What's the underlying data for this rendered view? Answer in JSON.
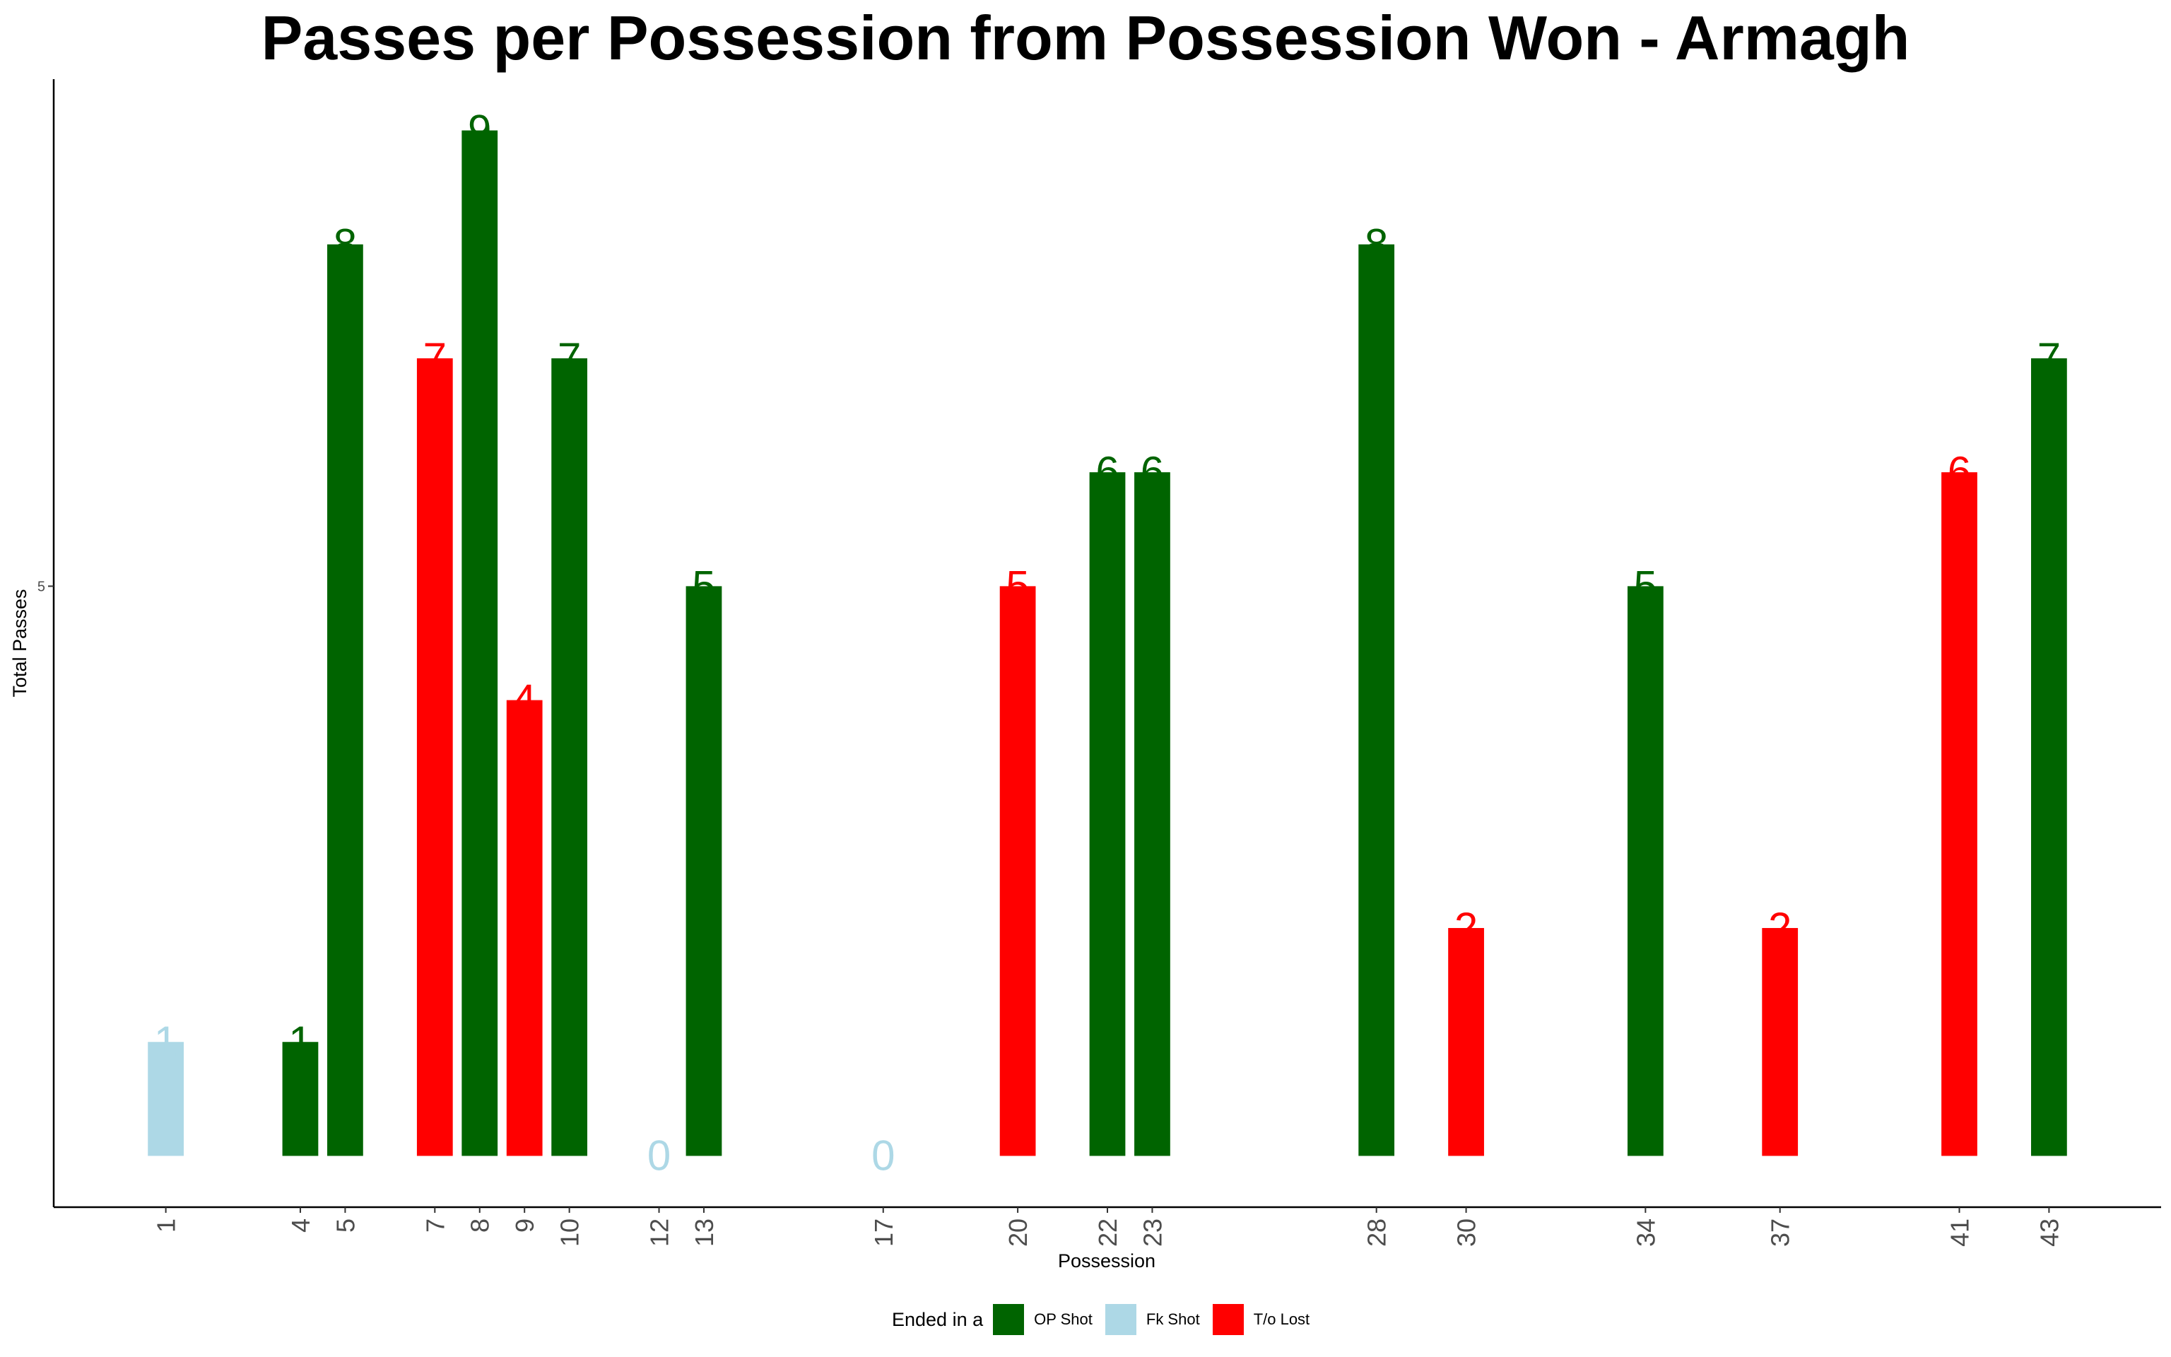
{
  "chart_data": {
    "type": "bar",
    "title": "Passes per Possession from Possession Won - Armagh",
    "xlabel": "Possession",
    "ylabel": "Total Passes",
    "x_range": [
      -1.5,
      45.5
    ],
    "y_range": [
      -0.45,
      9.45
    ],
    "y_ticks": [
      5
    ],
    "grid": false,
    "legend": {
      "title": "Ended in a",
      "position": "bottom",
      "items": [
        {
          "label": "OP Shot",
          "color": "#006400"
        },
        {
          "label": "Fk Shot",
          "color": "#ADD8E6"
        },
        {
          "label": "T/o Lost",
          "color": "#FF0000"
        }
      ]
    },
    "categories": [
      "1",
      "4",
      "5",
      "7",
      "8",
      "9",
      "10",
      "12",
      "13",
      "17",
      "20",
      "22",
      "23",
      "28",
      "30",
      "34",
      "37",
      "41",
      "43"
    ],
    "bars": [
      {
        "x": 1,
        "value": 1,
        "outcome": "Fk Shot"
      },
      {
        "x": 4,
        "value": 1,
        "outcome": "OP Shot"
      },
      {
        "x": 5,
        "value": 8,
        "outcome": "OP Shot"
      },
      {
        "x": 7,
        "value": 7,
        "outcome": "T/o Lost"
      },
      {
        "x": 8,
        "value": 9,
        "outcome": "OP Shot"
      },
      {
        "x": 9,
        "value": 4,
        "outcome": "T/o Lost"
      },
      {
        "x": 10,
        "value": 7,
        "outcome": "OP Shot"
      },
      {
        "x": 12,
        "value": 0,
        "outcome": "Fk Shot"
      },
      {
        "x": 13,
        "value": 5,
        "outcome": "OP Shot"
      },
      {
        "x": 17,
        "value": 0,
        "outcome": "Fk Shot"
      },
      {
        "x": 20,
        "value": 5,
        "outcome": "T/o Lost"
      },
      {
        "x": 22,
        "value": 6,
        "outcome": "OP Shot"
      },
      {
        "x": 23,
        "value": 6,
        "outcome": "OP Shot"
      },
      {
        "x": 28,
        "value": 8,
        "outcome": "OP Shot"
      },
      {
        "x": 30,
        "value": 2,
        "outcome": "T/o Lost"
      },
      {
        "x": 34,
        "value": 5,
        "outcome": "OP Shot"
      },
      {
        "x": 37,
        "value": 2,
        "outcome": "T/o Lost"
      },
      {
        "x": 41,
        "value": 6,
        "outcome": "T/o Lost"
      },
      {
        "x": 43,
        "value": 7,
        "outcome": "OP Shot"
      }
    ]
  }
}
